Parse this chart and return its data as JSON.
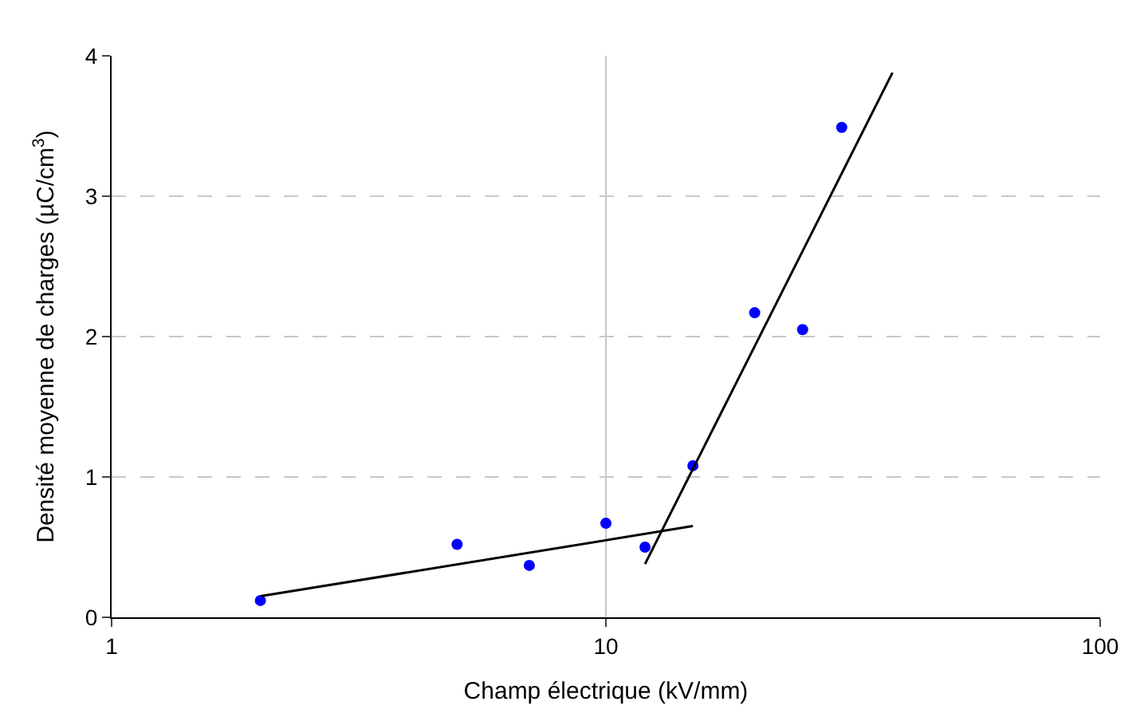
{
  "chart_data": {
    "type": "scatter",
    "xlabel": "Champ électrique (kV/mm)",
    "ylabel": "Densité moyenne de charges (µC/cm$^{3}$)",
    "log": "x",
    "xlim": [
      1,
      100
    ],
    "xticks": [
      1,
      10,
      100
    ],
    "ylim": [
      0,
      4
    ],
    "yticks": [
      0,
      1,
      2,
      3,
      4
    ],
    "grid": "y",
    "ref_lines": [
      {
        "axis": "x",
        "value": 10,
        "color": "#c8c8c8"
      }
    ],
    "marker": "circle",
    "series": [
      {
        "color": "#0000ff",
        "x": [
          2,
          5,
          7,
          10,
          12,
          15,
          20,
          25,
          30
        ],
        "values": [
          0.12,
          0.52,
          0.37,
          0.67,
          0.5,
          1.08,
          2.17,
          2.05,
          3.49
        ]
      },
      {
        "type": "line",
        "color": "#000000",
        "marker": "none",
        "x": [
          2,
          15
        ],
        "values": [
          0.15,
          0.65
        ]
      },
      {
        "type": "line",
        "color": "#000000",
        "marker": "none",
        "x": [
          12,
          38
        ],
        "values": [
          0.38,
          3.88
        ]
      }
    ]
  }
}
